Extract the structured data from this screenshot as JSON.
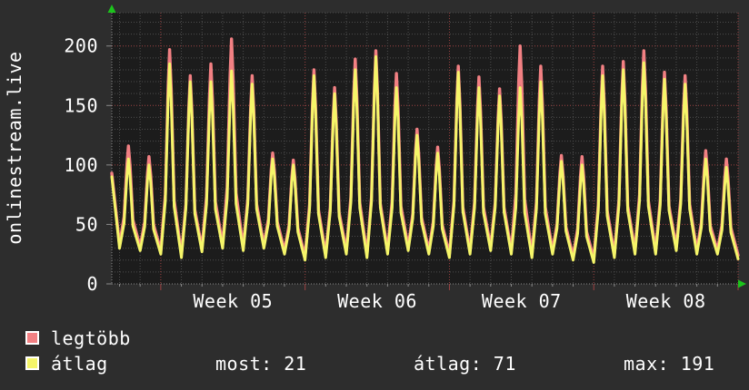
{
  "title": "onlinestream.live",
  "legend": [
    {
      "label": "legtöbb",
      "color": "#f28083"
    },
    {
      "label": "átlag",
      "color": "#f5f569"
    }
  ],
  "stats": [
    {
      "label": "most",
      "value": 21,
      "text": "most: 21"
    },
    {
      "label": "átlag",
      "value": 71,
      "text": "átlag: 71"
    },
    {
      "label": "max",
      "value": 191,
      "text": "max: 191"
    }
  ],
  "y_axis": {
    "tick_values": [
      0,
      50,
      100,
      150,
      200
    ],
    "max_display": 228
  },
  "x_axis": {
    "labels": [
      "Week 05",
      "Week 06",
      "Week 07",
      "Week 08"
    ]
  },
  "colors": {
    "background": "#2d2d2d",
    "plot_background": "#1c1c1c",
    "grid_minor": "#4d4d4d",
    "grid_major": "#9e4343",
    "axis": "#8a8a8a",
    "arrow": "#1cc41c",
    "text": "#ffffff",
    "series_max": "#f28083",
    "series_avg": "#f5f569"
  },
  "chart_data": {
    "type": "line",
    "title": "onlinestream.live concurrent viewers (daily cycle)",
    "x_unit": "days",
    "n_days": 30,
    "x_tick_labels": [
      "Week 05",
      "Week 06",
      "Week 07",
      "Week 08"
    ],
    "week_boundary_day_indices": [
      2,
      9,
      16,
      23,
      30
    ],
    "ylim": [
      0,
      228
    ],
    "y_minor_grid_every": 10,
    "y_major_grid_every": 50,
    "grid_style": "dotted",
    "legend_position": "bottom-left",
    "series": [
      {
        "name": "legtöbb",
        "color": "#f28083",
        "start_value": 93,
        "daily_peaks": [
          116,
          107,
          197,
          175,
          185,
          206,
          175,
          110,
          104,
          180,
          165,
          189,
          196,
          177,
          130,
          115,
          183,
          174,
          164,
          200,
          183,
          108,
          107,
          183,
          187,
          196,
          178,
          175,
          112,
          105
        ],
        "daily_troughs": [
          33,
          31,
          28,
          25,
          30,
          33,
          31,
          33,
          28,
          23,
          25,
          28,
          25,
          28,
          31,
          28,
          25,
          28,
          31,
          28,
          25,
          28,
          23,
          21,
          25,
          28,
          28,
          31,
          28,
          28,
          24
        ]
      },
      {
        "name": "átlag",
        "color": "#f5f569",
        "start_value": 90,
        "daily_peaks": [
          105,
          100,
          185,
          170,
          170,
          179,
          168,
          105,
          100,
          175,
          160,
          180,
          191,
          165,
          125,
          110,
          178,
          165,
          158,
          165,
          170,
          103,
          100,
          175,
          180,
          186,
          172,
          168,
          105,
          98
        ],
        "daily_troughs": [
          30,
          28,
          25,
          22,
          27,
          30,
          28,
          30,
          25,
          20,
          22,
          25,
          22,
          25,
          28,
          25,
          22,
          25,
          28,
          25,
          22,
          25,
          20,
          18,
          22,
          25,
          25,
          28,
          25,
          25,
          21
        ]
      }
    ],
    "stats": {
      "most": 21,
      "atlag": 71,
      "max": 191
    }
  }
}
